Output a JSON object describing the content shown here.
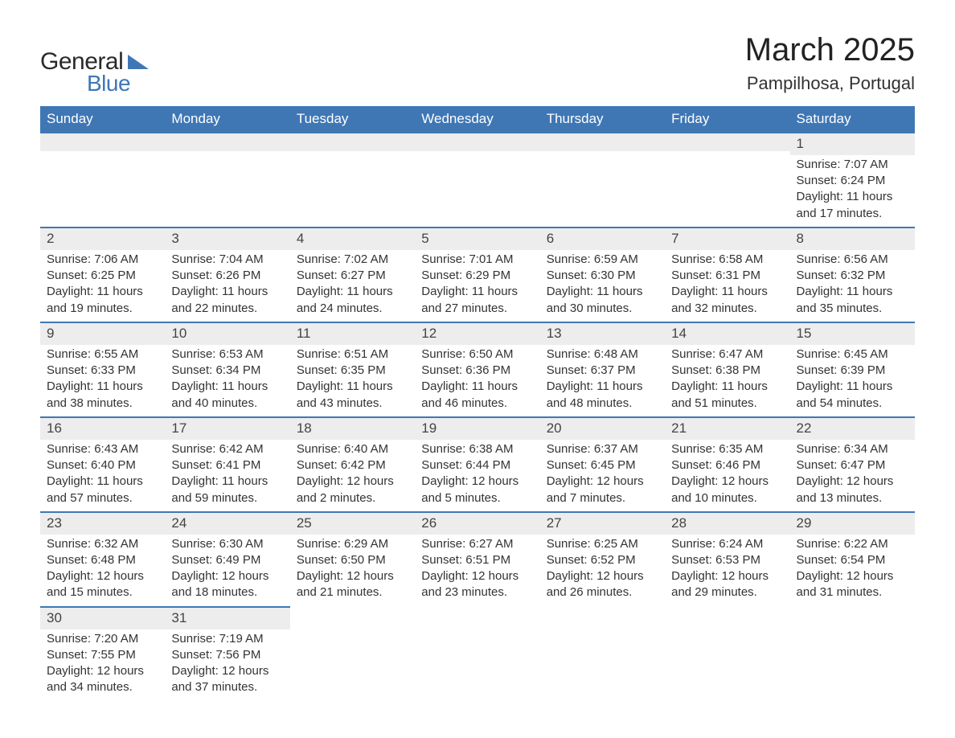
{
  "brand": {
    "word1": "General",
    "word2": "Blue",
    "word1_color": "#2a2a2a",
    "word2_color": "#3f77b5",
    "icon_color": "#3f77b5"
  },
  "title": {
    "month": "March 2025",
    "location": "Pampilhosa, Portugal"
  },
  "colors": {
    "header_bg": "#3f77b5",
    "header_text": "#ffffff",
    "daynum_bg": "#ededed",
    "row_border": "#3f77b5",
    "body_text": "#333333",
    "page_bg": "#ffffff"
  },
  "columns": [
    "Sunday",
    "Monday",
    "Tuesday",
    "Wednesday",
    "Thursday",
    "Friday",
    "Saturday"
  ],
  "labels": {
    "sunrise": "Sunrise:",
    "sunset": "Sunset:",
    "daylight": "Daylight:"
  },
  "weeks": [
    [
      null,
      null,
      null,
      null,
      null,
      null,
      {
        "n": "1",
        "sunrise": "7:07 AM",
        "sunset": "6:24 PM",
        "daylight": "11 hours and 17 minutes."
      }
    ],
    [
      {
        "n": "2",
        "sunrise": "7:06 AM",
        "sunset": "6:25 PM",
        "daylight": "11 hours and 19 minutes."
      },
      {
        "n": "3",
        "sunrise": "7:04 AM",
        "sunset": "6:26 PM",
        "daylight": "11 hours and 22 minutes."
      },
      {
        "n": "4",
        "sunrise": "7:02 AM",
        "sunset": "6:27 PM",
        "daylight": "11 hours and 24 minutes."
      },
      {
        "n": "5",
        "sunrise": "7:01 AM",
        "sunset": "6:29 PM",
        "daylight": "11 hours and 27 minutes."
      },
      {
        "n": "6",
        "sunrise": "6:59 AM",
        "sunset": "6:30 PM",
        "daylight": "11 hours and 30 minutes."
      },
      {
        "n": "7",
        "sunrise": "6:58 AM",
        "sunset": "6:31 PM",
        "daylight": "11 hours and 32 minutes."
      },
      {
        "n": "8",
        "sunrise": "6:56 AM",
        "sunset": "6:32 PM",
        "daylight": "11 hours and 35 minutes."
      }
    ],
    [
      {
        "n": "9",
        "sunrise": "6:55 AM",
        "sunset": "6:33 PM",
        "daylight": "11 hours and 38 minutes."
      },
      {
        "n": "10",
        "sunrise": "6:53 AM",
        "sunset": "6:34 PM",
        "daylight": "11 hours and 40 minutes."
      },
      {
        "n": "11",
        "sunrise": "6:51 AM",
        "sunset": "6:35 PM",
        "daylight": "11 hours and 43 minutes."
      },
      {
        "n": "12",
        "sunrise": "6:50 AM",
        "sunset": "6:36 PM",
        "daylight": "11 hours and 46 minutes."
      },
      {
        "n": "13",
        "sunrise": "6:48 AM",
        "sunset": "6:37 PM",
        "daylight": "11 hours and 48 minutes."
      },
      {
        "n": "14",
        "sunrise": "6:47 AM",
        "sunset": "6:38 PM",
        "daylight": "11 hours and 51 minutes."
      },
      {
        "n": "15",
        "sunrise": "6:45 AM",
        "sunset": "6:39 PM",
        "daylight": "11 hours and 54 minutes."
      }
    ],
    [
      {
        "n": "16",
        "sunrise": "6:43 AM",
        "sunset": "6:40 PM",
        "daylight": "11 hours and 57 minutes."
      },
      {
        "n": "17",
        "sunrise": "6:42 AM",
        "sunset": "6:41 PM",
        "daylight": "11 hours and 59 minutes."
      },
      {
        "n": "18",
        "sunrise": "6:40 AM",
        "sunset": "6:42 PM",
        "daylight": "12 hours and 2 minutes."
      },
      {
        "n": "19",
        "sunrise": "6:38 AM",
        "sunset": "6:44 PM",
        "daylight": "12 hours and 5 minutes."
      },
      {
        "n": "20",
        "sunrise": "6:37 AM",
        "sunset": "6:45 PM",
        "daylight": "12 hours and 7 minutes."
      },
      {
        "n": "21",
        "sunrise": "6:35 AM",
        "sunset": "6:46 PM",
        "daylight": "12 hours and 10 minutes."
      },
      {
        "n": "22",
        "sunrise": "6:34 AM",
        "sunset": "6:47 PM",
        "daylight": "12 hours and 13 minutes."
      }
    ],
    [
      {
        "n": "23",
        "sunrise": "6:32 AM",
        "sunset": "6:48 PM",
        "daylight": "12 hours and 15 minutes."
      },
      {
        "n": "24",
        "sunrise": "6:30 AM",
        "sunset": "6:49 PM",
        "daylight": "12 hours and 18 minutes."
      },
      {
        "n": "25",
        "sunrise": "6:29 AM",
        "sunset": "6:50 PM",
        "daylight": "12 hours and 21 minutes."
      },
      {
        "n": "26",
        "sunrise": "6:27 AM",
        "sunset": "6:51 PM",
        "daylight": "12 hours and 23 minutes."
      },
      {
        "n": "27",
        "sunrise": "6:25 AM",
        "sunset": "6:52 PM",
        "daylight": "12 hours and 26 minutes."
      },
      {
        "n": "28",
        "sunrise": "6:24 AM",
        "sunset": "6:53 PM",
        "daylight": "12 hours and 29 minutes."
      },
      {
        "n": "29",
        "sunrise": "6:22 AM",
        "sunset": "6:54 PM",
        "daylight": "12 hours and 31 minutes."
      }
    ],
    [
      {
        "n": "30",
        "sunrise": "7:20 AM",
        "sunset": "7:55 PM",
        "daylight": "12 hours and 34 minutes."
      },
      {
        "n": "31",
        "sunrise": "7:19 AM",
        "sunset": "7:56 PM",
        "daylight": "12 hours and 37 minutes."
      },
      null,
      null,
      null,
      null,
      null
    ]
  ]
}
